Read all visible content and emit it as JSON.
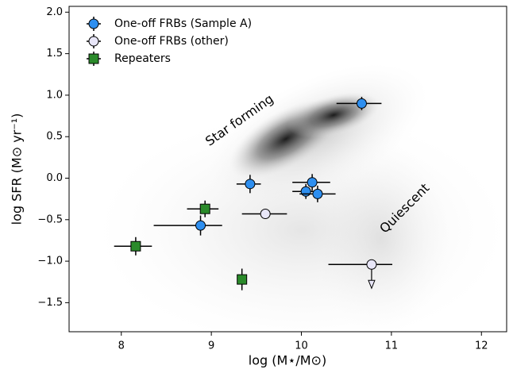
{
  "chart_data": {
    "type": "scatter",
    "xlabel": "log (M⋆/M⊙)",
    "ylabel": "log SFR (M⊙ yr⁻¹)",
    "xlim": [
      7.42,
      12.28
    ],
    "ylim": [
      -1.85,
      2.07
    ],
    "xticks": [
      8,
      9,
      10,
      11,
      12
    ],
    "yticks": [
      {
        "value": -1.5,
        "label": "−1.5"
      },
      {
        "value": -1.0,
        "label": "−1.0"
      },
      {
        "value": -0.5,
        "label": "−0.5"
      },
      {
        "value": 0.0,
        "label": "0.0"
      },
      0.5,
      {
        "value": 1.0,
        "label": "1.0"
      },
      1.5,
      {
        "value": 2.0,
        "label": "2.0"
      }
    ],
    "annotations": [
      "Star forming",
      "Quiescent"
    ],
    "legend": "upper left",
    "series": [
      {
        "name": "One-off FRBs (Sample A)",
        "color": "#2e8ff0",
        "marker": "circle",
        "x": [
          10.67,
          9.43,
          8.88,
          10.12,
          10.05,
          10.18
        ],
        "values": [
          0.9,
          -0.07,
          -0.57,
          -0.05,
          -0.16,
          -0.19
        ],
        "xerr": [
          [
            0.28,
            0.22
          ],
          [
            0.15,
            0.12
          ],
          [
            0.52,
            0.24
          ],
          [
            0.22,
            0.2
          ],
          [
            0.15,
            0.15
          ],
          [
            0.2,
            0.2
          ]
        ],
        "yerr": [
          0.08,
          0.11,
          0.12,
          0.1,
          0.09,
          0.1
        ]
      },
      {
        "name": "One-off FRBs (other)",
        "color": "#e8e6f8",
        "marker": "circle",
        "x": [
          9.6,
          10.78
        ],
        "values": [
          -0.43,
          -1.04
        ],
        "xerr": [
          [
            0.26,
            0.24
          ],
          [
            0.48,
            0.23
          ]
        ],
        "yerr": [
          0,
          0
        ],
        "upper_limit": [
          false,
          true
        ]
      },
      {
        "name": "Repeaters",
        "color": "#2a8a2a",
        "marker": "square",
        "x": [
          8.93,
          8.16,
          9.34
        ],
        "values": [
          -0.37,
          -0.82,
          -1.22
        ],
        "xerr": [
          [
            0.2,
            0.15
          ],
          [
            0.24,
            0.18
          ],
          [
            0.04,
            0.04
          ]
        ],
        "yerr": [
          0.1,
          0.11,
          0.13
        ]
      }
    ]
  }
}
